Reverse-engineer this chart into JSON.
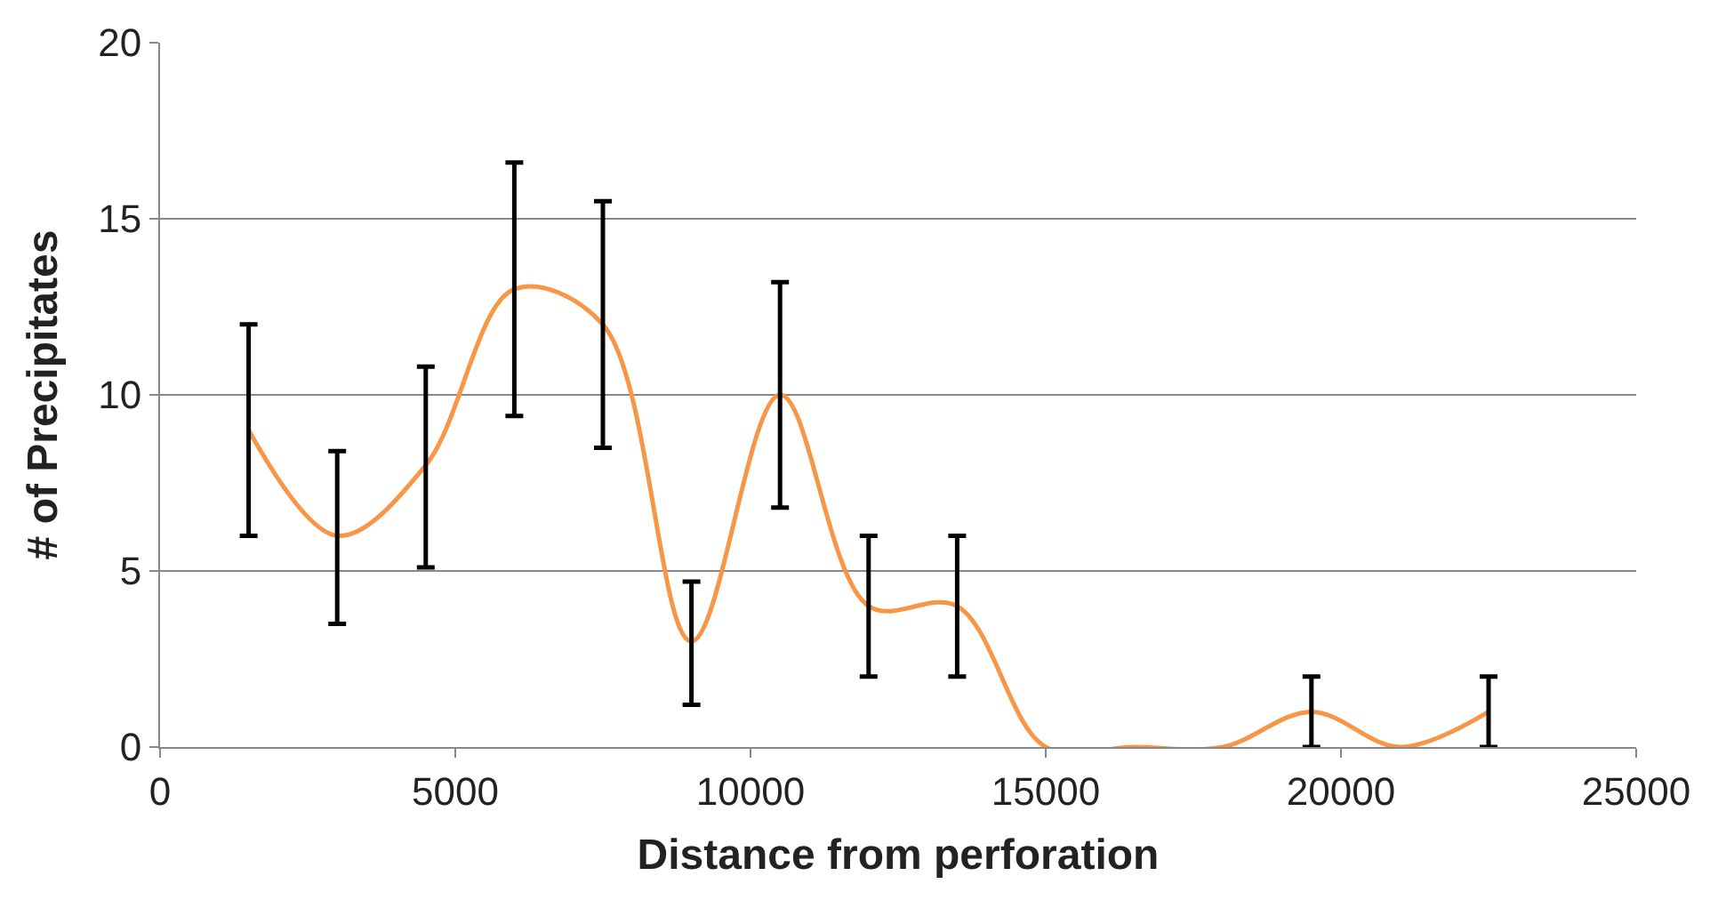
{
  "chart_data": {
    "type": "line",
    "xlabel": "Distance from perforation",
    "ylabel": "# of Precipitates",
    "x": [
      1500,
      3000,
      4500,
      6000,
      7500,
      9000,
      10500,
      12000,
      13500,
      15000,
      16500,
      18000,
      19500,
      21000,
      22500
    ],
    "series": [
      {
        "color": "#f79646",
        "values": [
          9,
          6,
          8,
          13,
          12,
          3,
          10,
          4,
          4,
          0,
          0,
          0,
          1,
          0,
          1
        ],
        "errors": [
          [
            6,
            12
          ],
          [
            3.5,
            8.4
          ],
          [
            5.1,
            10.8
          ],
          [
            9.4,
            16.6
          ],
          [
            8.5,
            15.5
          ],
          [
            1.2,
            4.7
          ],
          [
            6.8,
            13.2
          ],
          [
            2,
            6
          ],
          [
            2,
            6
          ],
          null,
          null,
          null,
          [
            0,
            2
          ],
          null,
          [
            0,
            2
          ]
        ]
      }
    ],
    "xlim": [
      0,
      25000
    ],
    "xticks": [
      0,
      5000,
      10000,
      15000,
      20000,
      25000
    ],
    "ylim": [
      0,
      20
    ],
    "yticks": [
      0,
      5,
      10,
      15,
      20
    ],
    "grid": "y",
    "marker": "none",
    "line_style": "solid"
  }
}
